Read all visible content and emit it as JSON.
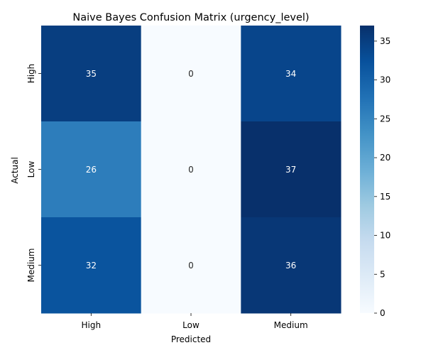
{
  "chart_data": {
    "type": "heatmap",
    "title": "Naive Bayes Confusion Matrix (urgency_level)",
    "xlabel": "Predicted",
    "ylabel": "Actual",
    "x_categories": [
      "High",
      "Low",
      "Medium"
    ],
    "y_categories": [
      "High",
      "Low",
      "Medium"
    ],
    "values": [
      [
        35,
        0,
        34
      ],
      [
        26,
        0,
        37
      ],
      [
        32,
        0,
        36
      ]
    ],
    "colormap": "Blues",
    "vmin": 0,
    "vmax": 37,
    "colorbar_ticks": [
      0,
      5,
      10,
      15,
      20,
      25,
      30,
      35
    ],
    "colorbar_tick_labels": [
      "0",
      "5",
      "10",
      "15",
      "20",
      "25",
      "30",
      "35"
    ]
  }
}
